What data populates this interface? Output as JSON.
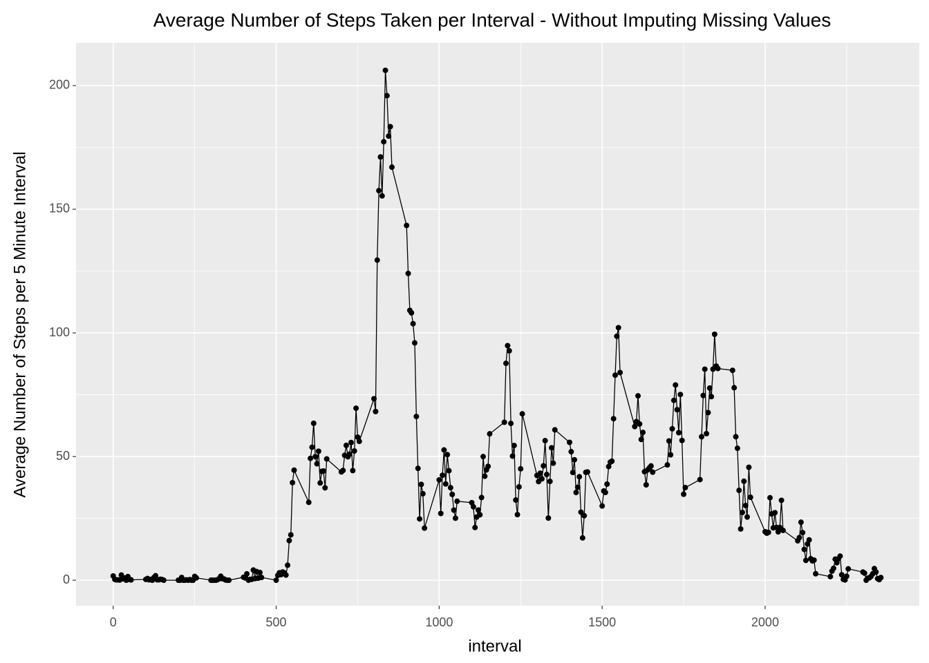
{
  "chart_data": {
    "type": "line",
    "title": "Average Number of Steps Taken per Interval - Without Imputing Missing Values",
    "x_label": "interval",
    "y_label": "Average Number of Steps per 5 Minute Interval",
    "color": "#000000",
    "grid": true,
    "xlim": [
      -114,
      2473
    ],
    "ylim": [
      -10.3,
      217.3
    ],
    "xticks": [
      0,
      500,
      1000,
      1500,
      2000
    ],
    "yticks": [
      0,
      50,
      100,
      150,
      200
    ],
    "x": [
      0,
      5,
      10,
      15,
      20,
      25,
      30,
      35,
      40,
      45,
      50,
      55,
      100,
      105,
      110,
      115,
      120,
      125,
      130,
      135,
      140,
      145,
      150,
      155,
      200,
      205,
      210,
      215,
      220,
      225,
      230,
      235,
      240,
      245,
      250,
      255,
      300,
      305,
      310,
      315,
      320,
      325,
      330,
      335,
      340,
      345,
      350,
      355,
      400,
      405,
      410,
      415,
      420,
      425,
      430,
      435,
      440,
      445,
      450,
      455,
      500,
      505,
      510,
      515,
      520,
      525,
      530,
      535,
      540,
      545,
      550,
      555,
      600,
      605,
      610,
      615,
      620,
      625,
      630,
      635,
      640,
      645,
      650,
      655,
      700,
      705,
      710,
      715,
      720,
      725,
      730,
      735,
      740,
      745,
      750,
      755,
      800,
      805,
      810,
      815,
      820,
      825,
      830,
      835,
      840,
      845,
      850,
      855,
      900,
      905,
      910,
      915,
      920,
      925,
      930,
      935,
      940,
      945,
      950,
      955,
      1000,
      1005,
      1010,
      1015,
      1020,
      1025,
      1030,
      1035,
      1040,
      1045,
      1050,
      1055,
      1100,
      1105,
      1110,
      1115,
      1120,
      1125,
      1130,
      1135,
      1140,
      1145,
      1150,
      1155,
      1200,
      1205,
      1210,
      1215,
      1220,
      1225,
      1230,
      1235,
      1240,
      1245,
      1250,
      1255,
      1300,
      1305,
      1310,
      1315,
      1320,
      1325,
      1330,
      1335,
      1340,
      1345,
      1350,
      1355,
      1400,
      1405,
      1410,
      1415,
      1420,
      1425,
      1430,
      1435,
      1440,
      1445,
      1450,
      1455,
      1500,
      1505,
      1510,
      1515,
      1520,
      1525,
      1530,
      1535,
      1540,
      1545,
      1550,
      1555,
      1600,
      1605,
      1610,
      1615,
      1620,
      1625,
      1630,
      1635,
      1640,
      1645,
      1650,
      1655,
      1700,
      1705,
      1710,
      1715,
      1720,
      1725,
      1730,
      1735,
      1740,
      1745,
      1750,
      1755,
      1800,
      1805,
      1810,
      1815,
      1820,
      1825,
      1830,
      1835,
      1840,
      1845,
      1850,
      1855,
      1900,
      1905,
      1910,
      1915,
      1920,
      1925,
      1930,
      1935,
      1940,
      1945,
      1950,
      1955,
      2000,
      2005,
      2010,
      2015,
      2020,
      2025,
      2030,
      2035,
      2040,
      2045,
      2050,
      2055,
      2100,
      2105,
      2110,
      2115,
      2120,
      2125,
      2130,
      2135,
      2140,
      2145,
      2150,
      2155,
      2200,
      2205,
      2210,
      2215,
      2220,
      2225,
      2230,
      2235,
      2240,
      2245,
      2250,
      2255,
      2300,
      2305,
      2310,
      2315,
      2320,
      2325,
      2330,
      2335,
      2340,
      2345,
      2350,
      2355
    ],
    "values": [
      1.72,
      0.34,
      0.13,
      0.15,
      0.08,
      2.09,
      0.53,
      0.87,
      0,
      1.47,
      0.3,
      0.13,
      0.32,
      0.68,
      0.15,
      0.34,
      0,
      1.11,
      1.83,
      0.17,
      0.17,
      0.38,
      0.26,
      0,
      0,
      0,
      1.13,
      0,
      0,
      0.13,
      0,
      0.23,
      0,
      0,
      1.55,
      0.94,
      0,
      0,
      0,
      0,
      0.21,
      0.62,
      1.62,
      0.58,
      0.49,
      0.08,
      0,
      0,
      1.19,
      0.94,
      2.57,
      0,
      0.34,
      0.36,
      4.11,
      0.66,
      3.49,
      0.83,
      3.11,
      1.11,
      0,
      1.96,
      3,
      2.25,
      3.32,
      2.96,
      2.09,
      6.06,
      16.02,
      18.34,
      39.45,
      44.49,
      31.49,
      49.26,
      53.77,
      63.45,
      49.96,
      47.08,
      52.15,
      39.34,
      44.02,
      44.17,
      37.36,
      49.04,
      43.81,
      44.38,
      50.51,
      54.51,
      49.92,
      50.98,
      55.68,
      44.32,
      52.26,
      69.55,
      57.85,
      56.15,
      73.38,
      68.21,
      129.43,
      157.53,
      171.15,
      155.4,
      177.3,
      206.17,
      195.92,
      179.57,
      183.4,
      167.02,
      143.45,
      124.04,
      109.11,
      108.11,
      103.72,
      95.96,
      66.21,
      45.23,
      24.79,
      38.75,
      34.98,
      21.06,
      40.57,
      26.98,
      42.42,
      52.66,
      38.92,
      50.79,
      44.28,
      37.42,
      34.7,
      28.34,
      25.09,
      31.94,
      31.36,
      29.68,
      21.32,
      25.55,
      28.38,
      26.47,
      33.43,
      49.98,
      42.04,
      44.6,
      46.04,
      59.19,
      63.87,
      87.7,
      94.85,
      92.77,
      63.4,
      50.17,
      54.47,
      32.42,
      26.53,
      37.74,
      45.06,
      67.28,
      42.34,
      39.89,
      43.26,
      40.98,
      46.25,
      56.43,
      42.75,
      25.13,
      39.96,
      53.55,
      47.32,
      60.81,
      55.75,
      51.96,
      43.58,
      48.7,
      35.47,
      37.55,
      41.85,
      27.51,
      17.11,
      26.08,
      43.62,
      43.77,
      30.02,
      36.08,
      35.49,
      38.85,
      45.96,
      47.75,
      48.13,
      65.32,
      82.91,
      98.66,
      102.11,
      83.96,
      62.13,
      64.13,
      74.55,
      63.17,
      56.91,
      59.77,
      43.87,
      38.57,
      44.66,
      45.45,
      46.21,
      43.68,
      46.62,
      56.3,
      50.72,
      61.23,
      72.72,
      78.94,
      68.94,
      59.66,
      75.09,
      56.51,
      34.77,
      37.45,
      40.68,
      58.02,
      74.7,
      85.32,
      59.26,
      67.77,
      77.7,
      74.25,
      85.34,
      99.45,
      86.58,
      85.6,
      84.87,
      77.83,
      58.04,
      53.36,
      36.32,
      20.72,
      27.4,
      40.02,
      30.21,
      25.55,
      45.66,
      33.53,
      19.62,
      19.02,
      19.34,
      33.34,
      26.81,
      21.17,
      27.3,
      21.34,
      19.55,
      21.32,
      32.3,
      20.15,
      15.94,
      17.23,
      23.45,
      19.25,
      12.45,
      8.02,
      14.66,
      16.3,
      8.68,
      7.79,
      8.13,
      2.62,
      1.45,
      3.68,
      4.81,
      8.51,
      7.08,
      8.7,
      9.75,
      2.21,
      0.32,
      0.11,
      1.6,
      4.6,
      3.3,
      2.85,
      0,
      0.83,
      0.96,
      1.58,
      2.6,
      4.7,
      3.3,
      0.64,
      0.23,
      1.08
    ]
  }
}
